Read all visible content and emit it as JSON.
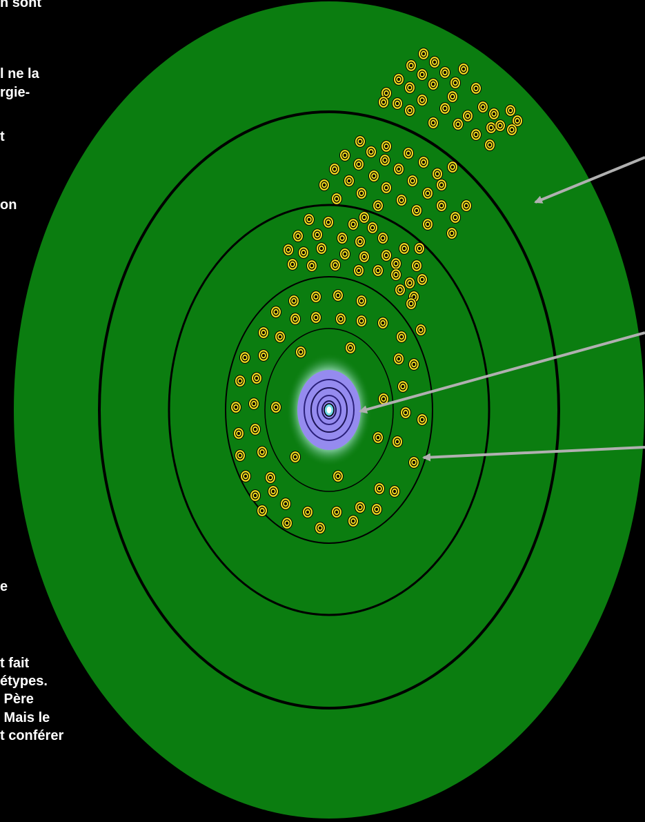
{
  "text_fragments": [
    "n sont",
    "l ne la",
    "rgie-",
    "t",
    "on",
    "e",
    "t fait",
    "étypes.",
    " Père",
    " Mais le",
    "t conférer"
  ],
  "colors": {
    "background": "#000000",
    "disc": "#0b7d10",
    "ring": "#000000",
    "core_glow": "#9a8cf0",
    "dot_fill": "#f4df1e",
    "arrow": "#b0b0b0"
  },
  "diagram": {
    "description_free": true,
    "outer_disc": "green-disc",
    "orbit_count": 5,
    "arrows": [
      "arrow-to-outer-band",
      "arrow-to-core",
      "arrow-to-inner-dot"
    ]
  }
}
